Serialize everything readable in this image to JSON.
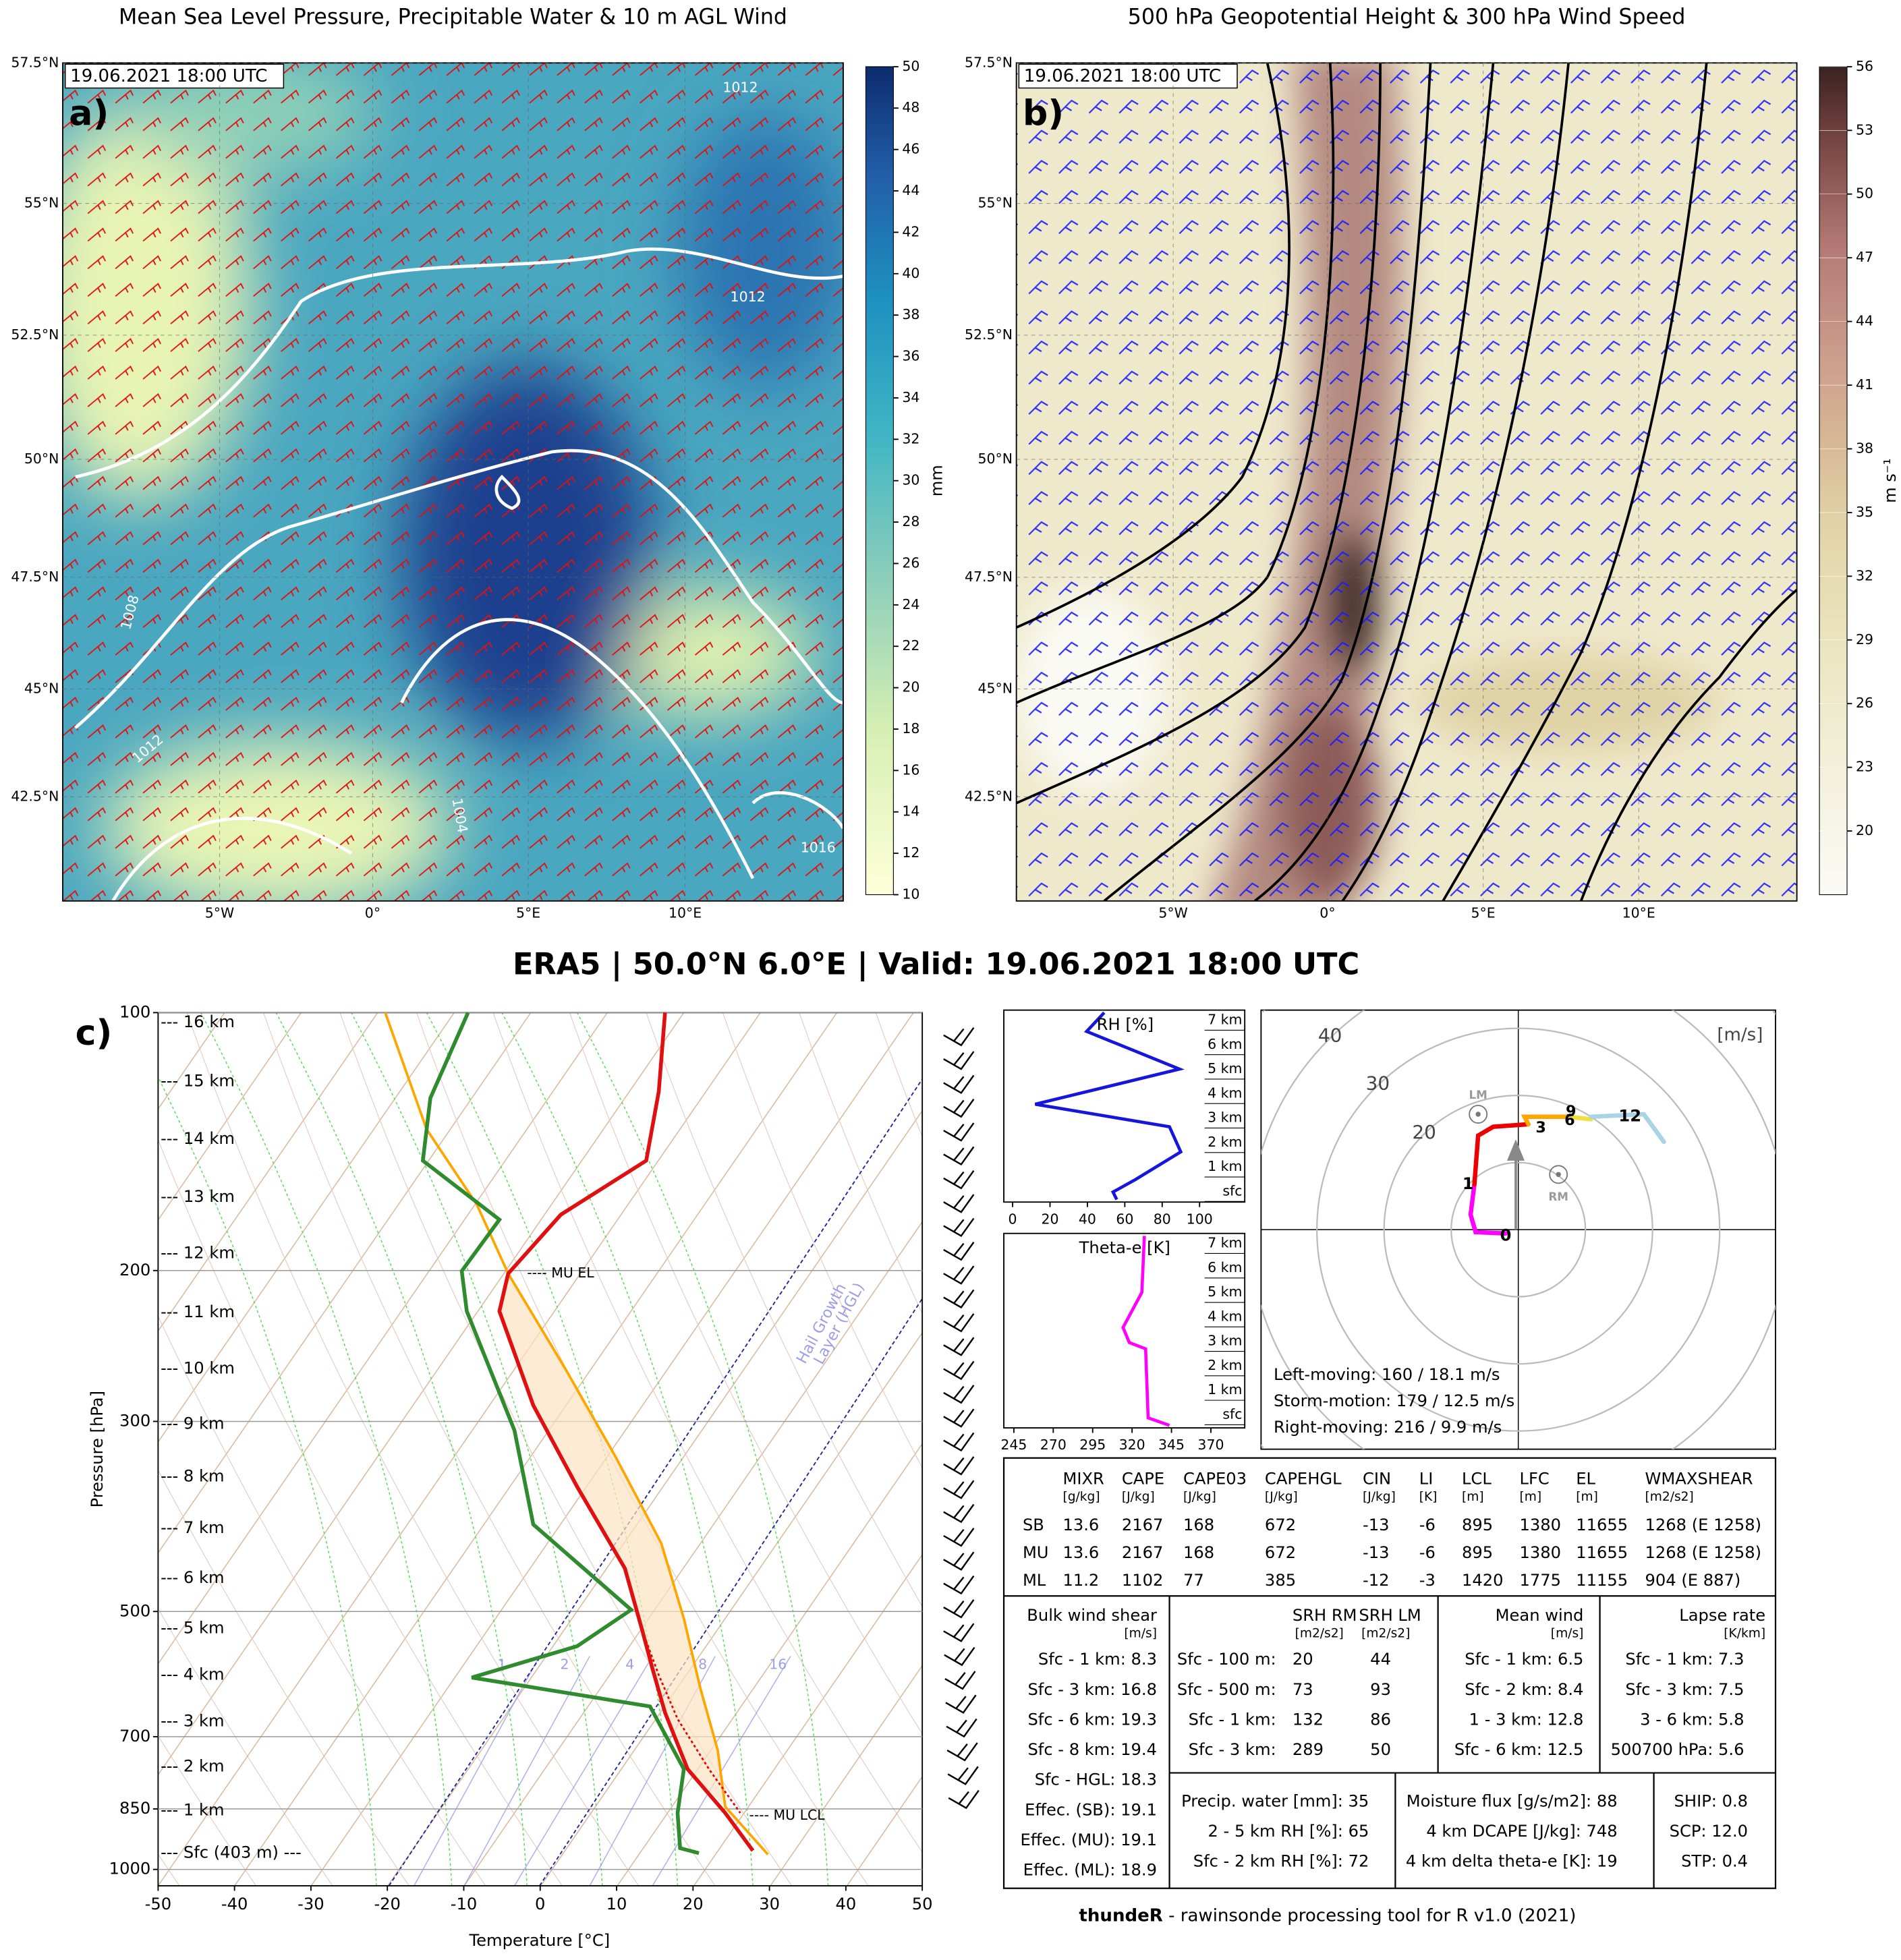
{
  "title": "ERA5 | 50.0°N 6.0°E | Valid: 19.06.2021 18:00 UTC",
  "panel_a": {
    "title": "Mean Sea Level Pressure, Precipitable Water & 10 m AGL Wind",
    "timestamp": "19.06.2021 18:00 UTC",
    "label": "a)",
    "lat_ticks": [
      "57.5°N",
      "55°N",
      "52.5°N",
      "50°N",
      "47.5°N",
      "45°N",
      "42.5°N"
    ],
    "lon_ticks": [
      "5°W",
      "0°",
      "5°E",
      "10°E"
    ],
    "contour_labels": [
      "1012",
      "1012",
      "1008",
      "1012",
      "1004",
      "1016"
    ],
    "colorbar": {
      "label": "mm",
      "lim": [
        10,
        50
      ],
      "ticks": [
        10,
        12,
        14,
        16,
        18,
        20,
        22,
        24,
        26,
        28,
        30,
        32,
        34,
        36,
        38,
        40,
        42,
        44,
        46,
        48,
        50
      ]
    }
  },
  "panel_b": {
    "title": "500 hPa Geopotential Height & 300 hPa Wind Speed",
    "timestamp": "19.06.2021 18:00 UTC",
    "label": "b)",
    "lat_ticks": [
      "57.5°N",
      "55°N",
      "52.5°N",
      "50°N",
      "47.5°N",
      "45°N",
      "42.5°N"
    ],
    "lon_ticks": [
      "5°W",
      "0°",
      "5°E",
      "10°E"
    ],
    "colorbar": {
      "label": "m s⁻¹",
      "lim": [
        17,
        56
      ],
      "ticks": [
        20,
        23,
        26,
        29,
        32,
        35,
        38,
        41,
        44,
        47,
        50,
        53,
        56
      ]
    }
  },
  "skewt": {
    "label": "c)",
    "xlabel": "Temperature [°C]",
    "ylabel": "Pressure [hPa]",
    "xlim": [
      -50,
      50
    ],
    "xticks": [
      -50,
      -40,
      -30,
      -20,
      -10,
      0,
      10,
      20,
      30,
      40,
      50
    ],
    "ylim": [
      1045,
      100
    ],
    "log_y": true,
    "yticks": [
      100,
      200,
      300,
      500,
      700,
      850,
      1000
    ],
    "heights": [
      "--- 16 km",
      "--- 15 km",
      "--- 14 km",
      "--- 13 km",
      "--- 12 km",
      "--- 11 km",
      "--- 10 km",
      "--- 9 km",
      "--- 8 km",
      "--- 7 km",
      "--- 6 km",
      "--- 5 km",
      "--- 4 km",
      "--- 3 km",
      "--- 2 km",
      "--- 1 km",
      "--- Sfc (403 m) ---"
    ],
    "annotations": [
      "---- MU EL",
      "---- MU LCL"
    ],
    "hgl": [
      "Hail Growth",
      "Layer (HGL)"
    ],
    "mixing_ratio_labels": [
      "1",
      "2",
      "4",
      "8",
      "16"
    ]
  },
  "rh_panel": {
    "label": "RH [%]",
    "xlim": [
      0,
      100
    ],
    "xticks": [
      0,
      20,
      40,
      60,
      80,
      100
    ],
    "heights": [
      "7 km",
      "6 km",
      "5 km",
      "4 km",
      "3 km",
      "2 km",
      "1 km",
      "sfc"
    ]
  },
  "theta_panel": {
    "label": "Theta-e [K]",
    "xlim": [
      245,
      370
    ],
    "xticks": [
      245,
      270,
      295,
      320,
      345,
      370
    ],
    "heights": [
      "7 km",
      "6 km",
      "5 km",
      "4 km",
      "3 km",
      "2 km",
      "1 km",
      "sfc"
    ]
  },
  "hodograph": {
    "unit": "[m/s]",
    "rings": [
      "20",
      "30",
      "40"
    ],
    "labels": [
      "0",
      "1",
      "3",
      "6",
      "9",
      "12",
      "LM",
      "RM"
    ],
    "notes": [
      "Left-moving: 160 / 18.1 m/s",
      "Storm-motion: 179 / 12.5 m/s",
      "Right-moving: 216 / 9.9 m/s"
    ]
  },
  "table": {
    "top": {
      "headers": [
        "MIXR",
        "CAPE",
        "CAPE03",
        "CAPEHGL",
        "CIN",
        "LI",
        "LCL",
        "LFC",
        "EL",
        "WMAXSHEAR"
      ],
      "units": [
        "[g/kg]",
        "[J/kg]",
        "[J/kg]",
        "[J/kg]",
        "[J/kg]",
        "[K]",
        "[m]",
        "[m]",
        "[m]",
        "[m2/s2]"
      ],
      "rows": [
        [
          "SB",
          "13.6",
          "2167",
          "168",
          "672",
          "-13",
          "-6",
          "895",
          "1380",
          "11655",
          "1268 (E 1258)"
        ],
        [
          "MU",
          "13.6",
          "2167",
          "168",
          "672",
          "-13",
          "-6",
          "895",
          "1380",
          "11655",
          "1268 (E 1258)"
        ],
        [
          "ML",
          "11.2",
          "1102",
          "77",
          "385",
          "-12",
          "-3",
          "1420",
          "1775",
          "11155",
          "904   (E 887)"
        ]
      ]
    },
    "shear": {
      "title": "Bulk wind shear",
      "unit": "[m/s]",
      "rows": [
        "Sfc - 1 km: 8.3",
        "Sfc - 3 km: 16.8",
        "Sfc - 6 km: 19.3",
        "Sfc - 8 km: 19.4",
        "Sfc - HGL: 18.3",
        "Effec. (SB): 19.1",
        "Effec. (MU): 19.1",
        "Effec. (ML): 18.9"
      ]
    },
    "srh": {
      "headers": [
        "SRH RM",
        "SRH LM"
      ],
      "units": [
        "[m2/s2]",
        "[m2/s2]"
      ],
      "rows": [
        [
          "Sfc - 100 m:",
          "20",
          "44"
        ],
        [
          "Sfc - 500 m:",
          "73",
          "93"
        ],
        [
          "Sfc - 1 km:",
          "132",
          "86"
        ],
        [
          "Sfc - 3 km:",
          "289",
          "50"
        ]
      ]
    },
    "mean_wind": {
      "title": "Mean wind",
      "unit": "[m/s]",
      "rows": [
        "Sfc - 1 km: 6.5",
        "Sfc - 2 km: 8.4",
        "1 - 3 km: 12.8",
        "Sfc - 6 km: 12.5"
      ]
    },
    "lapse": {
      "title": "Lapse rate",
      "unit": "[K/km]",
      "rows": [
        "Sfc - 1 km: 7.3",
        "Sfc - 3 km: 7.5",
        "3 - 6 km: 5.8",
        "500700 hPa: 5.6"
      ]
    },
    "moisture": [
      "Precip. water [mm]: 35",
      "2 - 5 km RH [%]: 65",
      "Sfc - 2 km RH [%]: 72"
    ],
    "flux": [
      "Moisture flux [g/s/m2]: 88",
      "4 km DCAPE [J/kg]: 748",
      "4 km delta theta-e [K]: 19"
    ],
    "indices": [
      "SHIP: 0.8",
      "SCP: 12.0",
      "STP: 0.4"
    ]
  },
  "footer": {
    "bold": "thundeR",
    "text": " - rawinsonde processing tool for R v1.0 (2021)"
  }
}
